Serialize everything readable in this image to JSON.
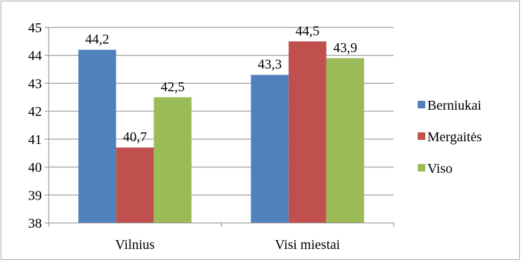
{
  "chart_data": {
    "type": "bar",
    "categories": [
      "Vilnius",
      "Visi miestai"
    ],
    "series": [
      {
        "name": "Berniukai",
        "values": [
          44.2,
          43.3
        ],
        "labels": [
          "44,2",
          "43,3"
        ],
        "color": "#4f81bd"
      },
      {
        "name": "Mergaitės",
        "values": [
          40.7,
          44.5
        ],
        "labels": [
          "40,7",
          "44,5"
        ],
        "color": "#c0504d"
      },
      {
        "name": "Viso",
        "values": [
          42.5,
          43.9
        ],
        "labels": [
          "42,5",
          "43,9"
        ],
        "color": "#9bbb59"
      }
    ],
    "ylim": [
      38,
      45
    ],
    "yticks": [
      "38",
      "39",
      "40",
      "41",
      "42",
      "43",
      "44",
      "45"
    ],
    "grid": true,
    "legend_position": "right",
    "title": "",
    "xlabel": "",
    "ylabel": ""
  }
}
